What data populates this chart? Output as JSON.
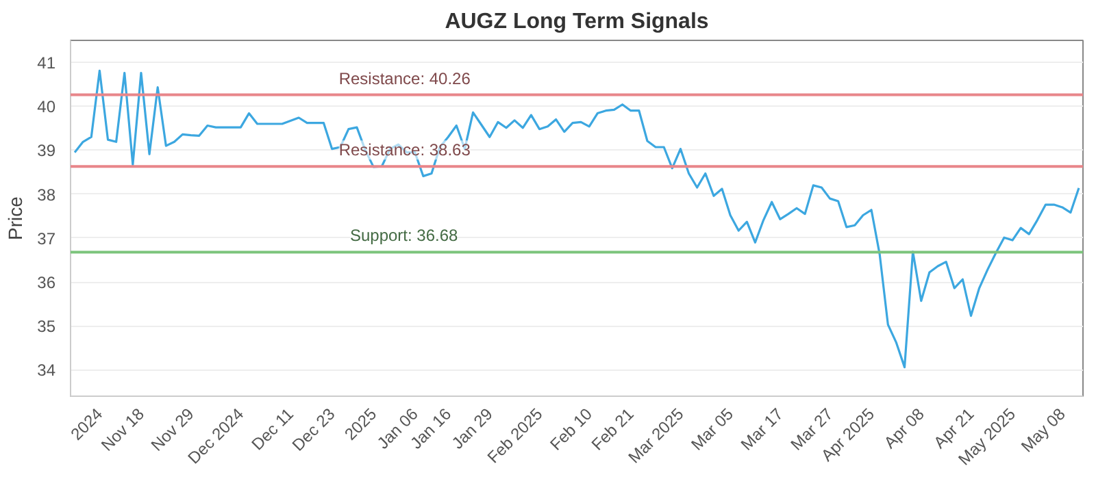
{
  "chart_data": {
    "type": "line",
    "title": "AUGZ Long Term Signals",
    "ylabel": "Price",
    "categories": [
      null,
      null,
      null,
      "2024",
      null,
      null,
      null,
      null,
      "Nov 18",
      null,
      null,
      null,
      null,
      null,
      "Nov 29",
      null,
      null,
      null,
      null,
      null,
      "Dec 2024",
      null,
      null,
      null,
      null,
      null,
      "Dec 11",
      null,
      null,
      null,
      null,
      "Dec 23",
      null,
      null,
      null,
      null,
      "2025",
      null,
      null,
      null,
      null,
      "Jan 06",
      null,
      null,
      null,
      "Jan 16",
      null,
      null,
      null,
      null,
      "Jan 29",
      null,
      null,
      null,
      null,
      null,
      "Feb 2025",
      null,
      null,
      null,
      null,
      null,
      "Feb 10",
      null,
      null,
      null,
      null,
      "Feb 21",
      null,
      null,
      null,
      null,
      null,
      "Mar 2025",
      null,
      null,
      null,
      null,
      null,
      "Mar 05",
      null,
      null,
      null,
      null,
      null,
      "Mar 17",
      null,
      null,
      null,
      null,
      null,
      "Mar 27",
      null,
      null,
      null,
      null,
      "Apr 2025",
      null,
      null,
      null,
      null,
      null,
      "Apr 08",
      null,
      null,
      null,
      null,
      null,
      "Apr 21",
      null,
      null,
      null,
      null,
      "May 2025",
      null,
      null,
      null,
      null,
      null,
      "May 08",
      null,
      null
    ],
    "series": [
      {
        "color": "#3ca7e0",
        "values": [
          38.95,
          39.19,
          39.3,
          40.81,
          39.24,
          39.19,
          40.76,
          38.67,
          40.76,
          38.91,
          40.43,
          39.1,
          39.19,
          39.36,
          39.34,
          39.33,
          39.56,
          39.52,
          39.52,
          39.52,
          39.52,
          39.84,
          39.6,
          39.6,
          39.6,
          39.6,
          39.67,
          39.74,
          39.62,
          39.62,
          39.62,
          39.03,
          39.07,
          39.48,
          39.52,
          39.01,
          38.62,
          38.63,
          39.03,
          39.13,
          38.95,
          38.95,
          38.41,
          38.47,
          39.07,
          39.3,
          39.56,
          39.03,
          39.86,
          39.58,
          39.3,
          39.64,
          39.51,
          39.68,
          39.51,
          39.8,
          39.48,
          39.54,
          39.7,
          39.42,
          39.62,
          39.64,
          39.54,
          39.84,
          39.9,
          39.92,
          40.04,
          39.9,
          39.9,
          39.21,
          39.07,
          39.07,
          38.59,
          39.03,
          38.47,
          38.15,
          38.47,
          37.96,
          38.12,
          37.52,
          37.17,
          37.37,
          36.9,
          37.41,
          37.82,
          37.43,
          37.55,
          37.68,
          37.55,
          38.2,
          38.15,
          37.9,
          37.84,
          37.25,
          37.29,
          37.52,
          37.64,
          36.63,
          35.03,
          34.62,
          34.06,
          36.69,
          35.57,
          36.22,
          36.36,
          36.46,
          35.86,
          36.06,
          35.23,
          35.86,
          36.28,
          36.66,
          37.01,
          36.95,
          37.23,
          37.09,
          37.41,
          37.76,
          37.76,
          37.7,
          37.58,
          38.14
        ]
      }
    ],
    "ylim": [
      33.4,
      41.5
    ],
    "yticks": [
      34,
      35,
      36,
      37,
      38,
      39,
      40,
      41
    ],
    "ref_lines": [
      {
        "axis": "y",
        "value": 40.26,
        "label": "Resistance: 40.26",
        "color": "#e8868a"
      },
      {
        "axis": "y",
        "value": 38.63,
        "label": "Resistance: 38.63",
        "color": "#e8868a"
      },
      {
        "axis": "y",
        "value": 36.68,
        "label": "Support: 36.68",
        "color": "#7cc47c"
      }
    ],
    "grid": "y",
    "marker": "none",
    "line_style": "solid"
  }
}
